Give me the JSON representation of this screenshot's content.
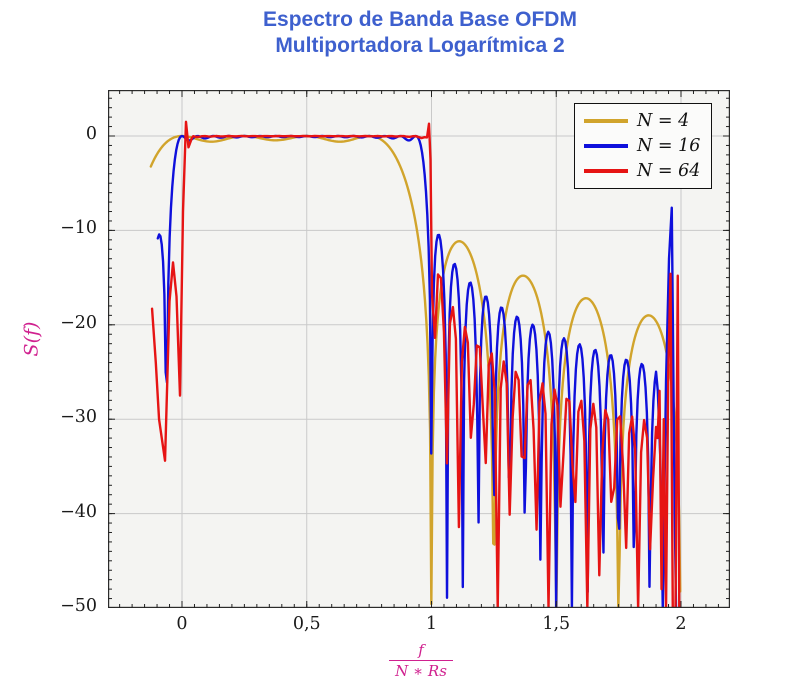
{
  "title": {
    "line1": "Espectro de Banda Base OFDM",
    "line2": "Multiportadora Logarítmica 2",
    "color": "#3e60ce"
  },
  "chart_data": {
    "type": "line",
    "title": "Espectro de Banda Base OFDM Multiportadora Logarítmica 2",
    "ylabel": "S(f)",
    "xlabel": {
      "numerator": "f",
      "denominator": "N ∗ Rs"
    },
    "axis_label_color": "#d0218f",
    "x_range": [
      -0.297,
      2.196
    ],
    "y_range": [
      -50,
      4.9
    ],
    "x_ticks": [
      {
        "v": 0,
        "label": "0"
      },
      {
        "v": 0.5,
        "label": "0,5"
      },
      {
        "v": 1,
        "label": "1"
      },
      {
        "v": 1.5,
        "label": "1,5"
      },
      {
        "v": 2,
        "label": "2"
      }
    ],
    "y_ticks": [
      {
        "v": 0,
        "label": "0"
      },
      {
        "v": -10,
        "label": "−10"
      },
      {
        "v": -20,
        "label": "−20"
      },
      {
        "v": -30,
        "label": "−30"
      },
      {
        "v": -40,
        "label": "−40"
      },
      {
        "v": -50,
        "label": "−50"
      }
    ],
    "x_minor_step": 0.05,
    "y_minor_step": 1,
    "grid": true,
    "colors": {
      "plot_bg": "#f4f4f2",
      "grid": "#c9c9c9",
      "spine": "#2b2b2b",
      "tick": "#222222",
      "legend_bg": "#fbfbfa"
    },
    "legend_position": "top-right",
    "formula": "S(x) = 10*log10(max(1e-5, sum_{k=0..N-1} sinc^2(N*x - k))), x = f/(N*Rs), clipped at -50 dB",
    "series": [
      {
        "label": "N = 4",
        "color": "#d1a42c",
        "N": 4,
        "parts": [
          {
            "type": "formula",
            "N": 4,
            "x_start": -0.125,
            "x_end": 1.997,
            "samples": 420
          }
        ]
      },
      {
        "label": "N = 16",
        "color": "#0f10dc",
        "N": 16,
        "parts": [
          {
            "type": "formula",
            "N": 16,
            "x_start": -0.097,
            "x_end": 1.9,
            "samples": 380
          },
          {
            "type": "points",
            "pts": [
              [
                1.907,
                -27
              ],
              [
                1.917,
                -34
              ],
              [
                1.927,
                -50
              ],
              [
                1.94,
                -26
              ],
              [
                1.952,
                -13
              ],
              [
                1.963,
                -7.6
              ],
              [
                1.974,
                -38
              ],
              [
                1.98,
                -50
              ]
            ]
          }
        ]
      },
      {
        "label": "N = 64",
        "color": "#e61414",
        "N": 64,
        "parts": [
          {
            "type": "points",
            "pts": [
              [
                -0.12,
                -18.3
              ],
              [
                -0.105,
                -24
              ],
              [
                -0.092,
                -30
              ],
              [
                -0.068,
                -34.4
              ],
              [
                -0.05,
                -17.5
              ],
              [
                -0.036,
                -13.4
              ],
              [
                -0.022,
                -17
              ],
              [
                -0.008,
                -27.5
              ],
              [
                0.004,
                -8
              ],
              [
                0.016,
                1.5
              ],
              [
                0.026,
                -1.2
              ],
              [
                0.04,
                -0.2
              ]
            ]
          },
          {
            "type": "formula",
            "N": 64,
            "x_start": 0.045,
            "x_end": 0.972,
            "samples": 79
          },
          {
            "type": "points",
            "pts": [
              [
                0.982,
                -0.15
              ],
              [
                0.99,
                1.3
              ],
              [
                0.996,
                -2.5
              ]
            ]
          },
          {
            "type": "formula",
            "N": 64,
            "x_start": 1.002,
            "x_end": 1.9,
            "samples": 76
          },
          {
            "type": "points",
            "pts": [
              [
                1.906,
                -32
              ],
              [
                1.914,
                -27
              ],
              [
                1.922,
                -48
              ],
              [
                1.931,
                -30
              ],
              [
                1.94,
                -50
              ],
              [
                1.949,
                -25
              ],
              [
                1.958,
                -14.6
              ],
              [
                1.967,
                -50
              ],
              [
                1.978,
                -50
              ],
              [
                1.987,
                -14.8
              ],
              [
                1.993,
                -50
              ]
            ]
          }
        ]
      }
    ]
  }
}
